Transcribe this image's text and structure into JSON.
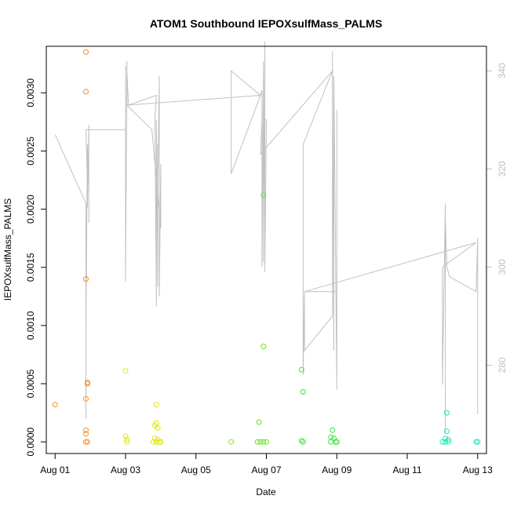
{
  "chart_data": {
    "type": "scatter",
    "title": "ATOM1 Southbound IEPOXsulfMass_PALMS",
    "xlabel": "Date",
    "ylabel": "IEPOXsulfMass_PALMS",
    "x_ticks": [
      "Aug 01",
      "Aug 03",
      "Aug 05",
      "Aug 07",
      "Aug 09",
      "Aug 11",
      "Aug 13"
    ],
    "x_range": [
      "2016-07-31T18:00",
      "2016-08-13T06:00"
    ],
    "y_ticks": [
      "0.0000",
      "0.0005",
      "0.0010",
      "0.0015",
      "0.0020",
      "0.0025",
      "0.0030"
    ],
    "y_tick_values": [
      0,
      0.0005,
      0.001,
      0.0015,
      0.002,
      0.0025,
      0.003
    ],
    "ylim": [
      -0.0001,
      0.0034
    ],
    "y2_ticks": [
      "280",
      "300",
      "320",
      "340"
    ],
    "y2_tick_values": [
      280,
      300,
      320,
      340
    ],
    "y2lim": [
      262,
      345
    ],
    "grid": false,
    "points": [
      {
        "x": "2016-08-01T00:00",
        "y": 0.00032,
        "color": "#ff8c1a"
      },
      {
        "x": "2016-08-01T21:00",
        "y": 0.00335,
        "color": "#ff8c1a"
      },
      {
        "x": "2016-08-01T21:00",
        "y": 0.00301,
        "color": "#ff8c1a"
      },
      {
        "x": "2016-08-01T21:00",
        "y": 0.0014,
        "color": "#ff8c1a"
      },
      {
        "x": "2016-08-01T21:00",
        "y": 0.00037,
        "color": "#ff8c1a"
      },
      {
        "x": "2016-08-01T22:00",
        "y": 0.00051,
        "color": "#ff8c1a"
      },
      {
        "x": "2016-08-01T22:00",
        "y": 0.0005,
        "color": "#ff8c1a"
      },
      {
        "x": "2016-08-01T21:00",
        "y": 0.0001,
        "color": "#ff8c1a"
      },
      {
        "x": "2016-08-01T21:00",
        "y": 7e-05,
        "color": "#ff8c1a"
      },
      {
        "x": "2016-08-01T21:00",
        "y": 0.0,
        "color": "#ff8c1a"
      },
      {
        "x": "2016-08-01T22:00",
        "y": 0.0,
        "color": "#ff8c1a"
      },
      {
        "x": "2016-08-03T00:00",
        "y": 0.00061,
        "color": "#e6e600"
      },
      {
        "x": "2016-08-03T00:00",
        "y": 5e-05,
        "color": "#e6e600"
      },
      {
        "x": "2016-08-03T01:00",
        "y": 2e-05,
        "color": "#e6e600"
      },
      {
        "x": "2016-08-03T01:00",
        "y": 0.0,
        "color": "#e6e600"
      },
      {
        "x": "2016-08-03T21:00",
        "y": 0.00032,
        "color": "#e6e600"
      },
      {
        "x": "2016-08-03T20:00",
        "y": 0.00014,
        "color": "#e6e600"
      },
      {
        "x": "2016-08-03T21:00",
        "y": 0.00016,
        "color": "#e6e600"
      },
      {
        "x": "2016-08-03T22:00",
        "y": 0.00012,
        "color": "#e6e600"
      },
      {
        "x": "2016-08-03T20:00",
        "y": 3e-05,
        "color": "#e6e600"
      },
      {
        "x": "2016-08-03T22:00",
        "y": 2e-05,
        "color": "#e6e600"
      },
      {
        "x": "2016-08-03T19:00",
        "y": 0.0,
        "color": "#e6e600"
      },
      {
        "x": "2016-08-03T21:00",
        "y": 0.0,
        "color": "#e6e600"
      },
      {
        "x": "2016-08-03T23:00",
        "y": 0.0,
        "color": "#e6e600"
      },
      {
        "x": "2016-08-04T00:00",
        "y": 0.0,
        "color": "#e6e600"
      },
      {
        "x": "2016-08-06T00:00",
        "y": 0.0,
        "color": "#80e600"
      },
      {
        "x": "2016-08-06T19:00",
        "y": 0.00017,
        "color": "#66e619"
      },
      {
        "x": "2016-08-06T22:00",
        "y": 0.00212,
        "color": "#66e619"
      },
      {
        "x": "2016-08-06T22:00",
        "y": 0.00082,
        "color": "#66e619"
      },
      {
        "x": "2016-08-06T18:00",
        "y": 0.0,
        "color": "#66e619"
      },
      {
        "x": "2016-08-06T20:00",
        "y": 0.0,
        "color": "#66e619"
      },
      {
        "x": "2016-08-06T22:00",
        "y": 0.0,
        "color": "#66e619"
      },
      {
        "x": "2016-08-07T00:00",
        "y": 0.0,
        "color": "#66e619"
      },
      {
        "x": "2016-08-08T00:00",
        "y": 0.00062,
        "color": "#33e633"
      },
      {
        "x": "2016-08-08T01:00",
        "y": 0.00043,
        "color": "#33e633"
      },
      {
        "x": "2016-08-08T00:00",
        "y": 1e-05,
        "color": "#33e633"
      },
      {
        "x": "2016-08-08T01:00",
        "y": 0.0,
        "color": "#33e633"
      },
      {
        "x": "2016-08-08T21:00",
        "y": 0.0001,
        "color": "#33e633"
      },
      {
        "x": "2016-08-08T20:00",
        "y": 4e-05,
        "color": "#33e633"
      },
      {
        "x": "2016-08-08T22:00",
        "y": 3e-05,
        "color": "#33e633"
      },
      {
        "x": "2016-08-08T20:00",
        "y": 0.0,
        "color": "#33e633"
      },
      {
        "x": "2016-08-08T23:00",
        "y": 0.0,
        "color": "#33e633"
      },
      {
        "x": "2016-08-09T00:00",
        "y": 0.0,
        "color": "#33e633"
      },
      {
        "x": "2016-08-12T03:00",
        "y": 0.00025,
        "color": "#19e6b3"
      },
      {
        "x": "2016-08-12T03:00",
        "y": 9e-05,
        "color": "#19e6b3"
      },
      {
        "x": "2016-08-12T02:00",
        "y": 3e-05,
        "color": "#19e6b3"
      },
      {
        "x": "2016-08-12T04:00",
        "y": 2e-05,
        "color": "#19e6b3"
      },
      {
        "x": "2016-08-12T00:00",
        "y": 0.0,
        "color": "#19e6b3"
      },
      {
        "x": "2016-08-12T02:00",
        "y": 0.0,
        "color": "#19e6b3"
      },
      {
        "x": "2016-08-12T04:00",
        "y": 0.0,
        "color": "#19e6b3"
      },
      {
        "x": "2016-08-13T00:00",
        "y": 0.0,
        "color": "#19e6cc"
      },
      {
        "x": "2016-08-12T23:00",
        "y": 0.0,
        "color": "#19e6cc"
      }
    ],
    "line_series": {
      "axis": "right",
      "color": "#c0c0c0",
      "points": [
        [
          "2016-08-01T00:00",
          327
        ],
        [
          "2016-08-01T21:00",
          313
        ],
        [
          "2016-08-01T21:00",
          269
        ],
        [
          "2016-08-01T21:00",
          287
        ],
        [
          "2016-08-01T22:00",
          325
        ],
        [
          "2016-08-01T22:00",
          312
        ],
        [
          "2016-08-01T23:00",
          329
        ],
        [
          "2016-08-01T23:00",
          309
        ],
        [
          "2016-08-01T23:00",
          318
        ],
        [
          "2016-08-01T22:00",
          317
        ],
        [
          "2016-08-01T21:00",
          328
        ],
        [
          "2016-08-03T00:00",
          328
        ],
        [
          "2016-08-03T00:00",
          341
        ],
        [
          "2016-08-03T00:00",
          297
        ],
        [
          "2016-08-03T01:00",
          342
        ],
        [
          "2016-08-03T01:00",
          333
        ],
        [
          "2016-08-03T01:00",
          340
        ],
        [
          "2016-08-03T02:00",
          333
        ],
        [
          "2016-08-03T21:00",
          335
        ],
        [
          "2016-08-03T20:00",
          330
        ],
        [
          "2016-08-03T21:00",
          292
        ],
        [
          "2016-08-03T21:00",
          330
        ],
        [
          "2016-08-03T22:00",
          296
        ],
        [
          "2016-08-03T22:00",
          325
        ],
        [
          "2016-08-03T22:00",
          316
        ],
        [
          "2016-08-03T23:00",
          339
        ],
        [
          "2016-08-03T23:00",
          294
        ],
        [
          "2016-08-04T00:00",
          321
        ],
        [
          "2016-08-04T00:00",
          308
        ],
        [
          "2016-08-03T18:00",
          328
        ],
        [
          "2016-08-03T01:00",
          333
        ],
        [
          "2016-08-06T20:00",
          335
        ],
        [
          "2016-08-06T00:00",
          340
        ],
        [
          "2016-08-06T00:00",
          319
        ],
        [
          "2016-08-06T20:00",
          335
        ],
        [
          "2016-08-06T21:00",
          336
        ],
        [
          "2016-08-06T21:00",
          300
        ],
        [
          "2016-08-06T22:00",
          342
        ],
        [
          "2016-08-06T22:00",
          301
        ],
        [
          "2016-08-06T23:00",
          346
        ],
        [
          "2016-08-06T23:00",
          299
        ],
        [
          "2016-08-07T00:00",
          330
        ],
        [
          "2016-08-06T21:00",
          330
        ],
        [
          "2016-08-06T20:00",
          323
        ],
        [
          "2016-08-08T21:00",
          340
        ],
        [
          "2016-08-08T01:00",
          325
        ],
        [
          "2016-08-08T01:00",
          278
        ],
        [
          "2016-08-08T02:00",
          295
        ],
        [
          "2016-08-08T02:00",
          283
        ],
        [
          "2016-08-08T21:00",
          290
        ],
        [
          "2016-08-08T21:00",
          344
        ],
        [
          "2016-08-08T22:00",
          283
        ],
        [
          "2016-08-08T22:00",
          339
        ],
        [
          "2016-08-09T00:00",
          275
        ],
        [
          "2016-08-09T00:00",
          332
        ],
        [
          "2016-08-09T00:00",
          295
        ],
        [
          "2016-08-08T02:00",
          295
        ],
        [
          "2016-08-12T23:00",
          305
        ],
        [
          "2016-08-12T00:00",
          300
        ],
        [
          "2016-08-12T00:00",
          276
        ],
        [
          "2016-08-12T02:00",
          313
        ],
        [
          "2016-08-12T02:00",
          266
        ],
        [
          "2016-08-12T02:00",
          310
        ],
        [
          "2016-08-12T03:00",
          300
        ],
        [
          "2016-08-12T03:00",
          300
        ],
        [
          "2016-08-12T05:00",
          298
        ],
        [
          "2016-08-12T23:00",
          295
        ],
        [
          "2016-08-13T00:00",
          306
        ],
        [
          "2016-08-13T00:00",
          270
        ],
        [
          "2016-08-13T00:00",
          306
        ]
      ]
    }
  }
}
